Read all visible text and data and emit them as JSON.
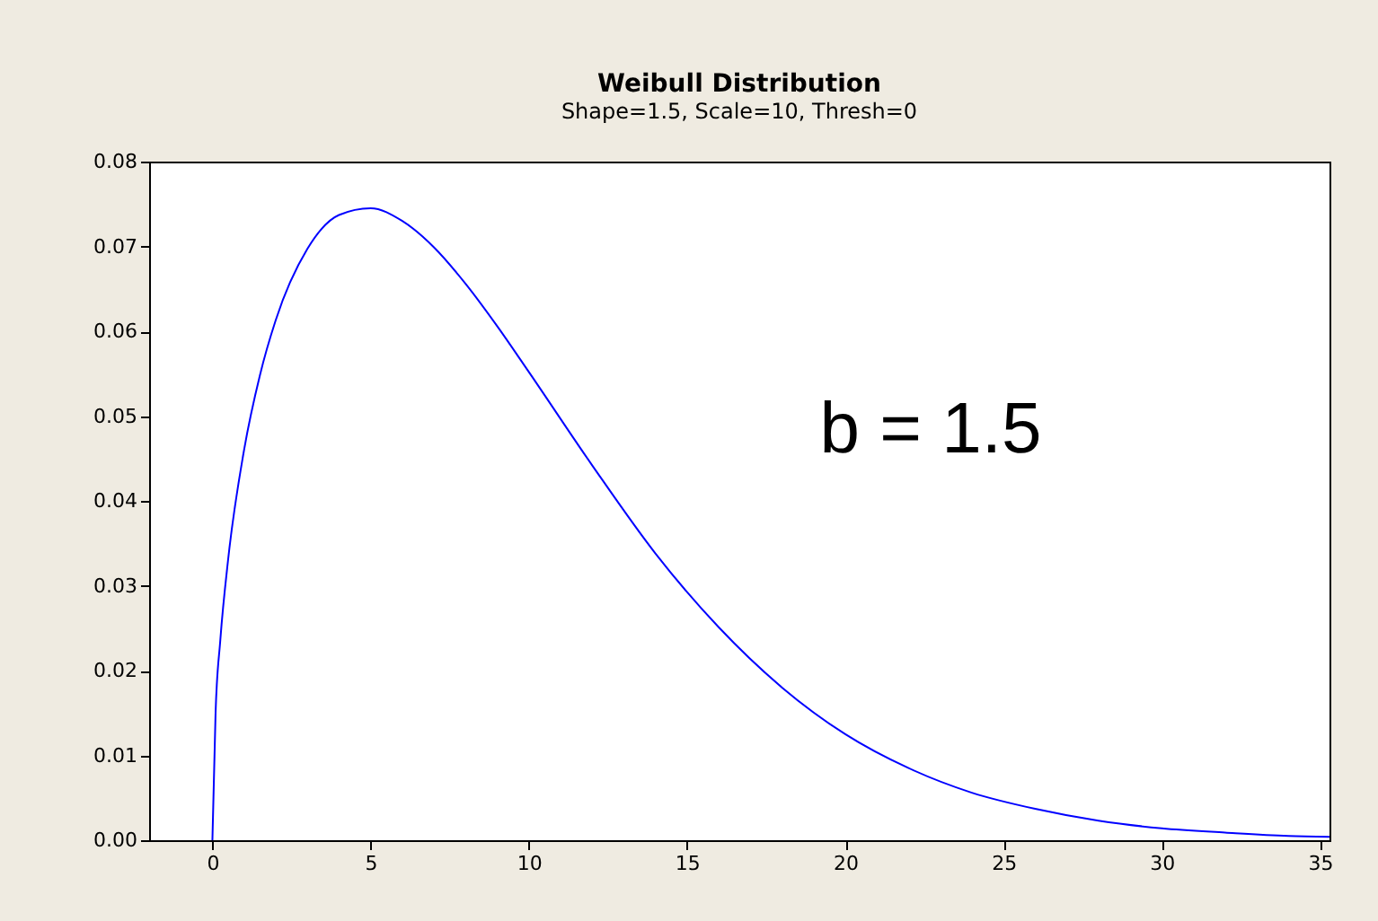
{
  "chart_data": {
    "type": "line",
    "title": "Weibull Distribution",
    "subtitle": "Shape=1.5, Scale=10, Thresh=0",
    "x": [
      0,
      0.1,
      0.25,
      0.5,
      1,
      1.5,
      2,
      3,
      4,
      5,
      6,
      7,
      8,
      9,
      10,
      12,
      14,
      16,
      18,
      20,
      22,
      24,
      26,
      28,
      30,
      32,
      34,
      35.3
    ],
    "series": [
      {
        "color": "#0000ff",
        "values": [
          0,
          0.015,
          0.0236,
          0.0332,
          0.046,
          0.0548,
          0.0613,
          0.0697,
          0.0737,
          0.0745,
          0.073,
          0.0699,
          0.0656,
          0.0606,
          0.0552,
          0.0442,
          0.0338,
          0.0251,
          0.018,
          0.0125,
          0.0085,
          0.0056,
          0.0037,
          0.0023,
          0.0014,
          0.0009,
          0.0005,
          0.0004
        ]
      }
    ],
    "xlim": [
      -2,
      35.3
    ],
    "ylim": [
      0,
      0.08
    ],
    "xticks": [
      0,
      5,
      10,
      15,
      20,
      25,
      30,
      35
    ],
    "yticks": [
      {
        "value": 0,
        "label": "0.00"
      },
      {
        "value": 0.01,
        "label": "0.01"
      },
      {
        "value": 0.02,
        "label": "0.02"
      },
      {
        "value": 0.03,
        "label": "0.03"
      },
      {
        "value": 0.04,
        "label": "0.04"
      },
      {
        "value": 0.05,
        "label": "0.05"
      },
      {
        "value": 0.06,
        "label": "0.06"
      },
      {
        "value": 0.07,
        "label": "0.07"
      },
      {
        "value": 0.08,
        "label": "0.08"
      }
    ],
    "annotations": [
      "b = 1.5"
    ],
    "grid": false,
    "marker": "none",
    "line_style": "solid"
  }
}
